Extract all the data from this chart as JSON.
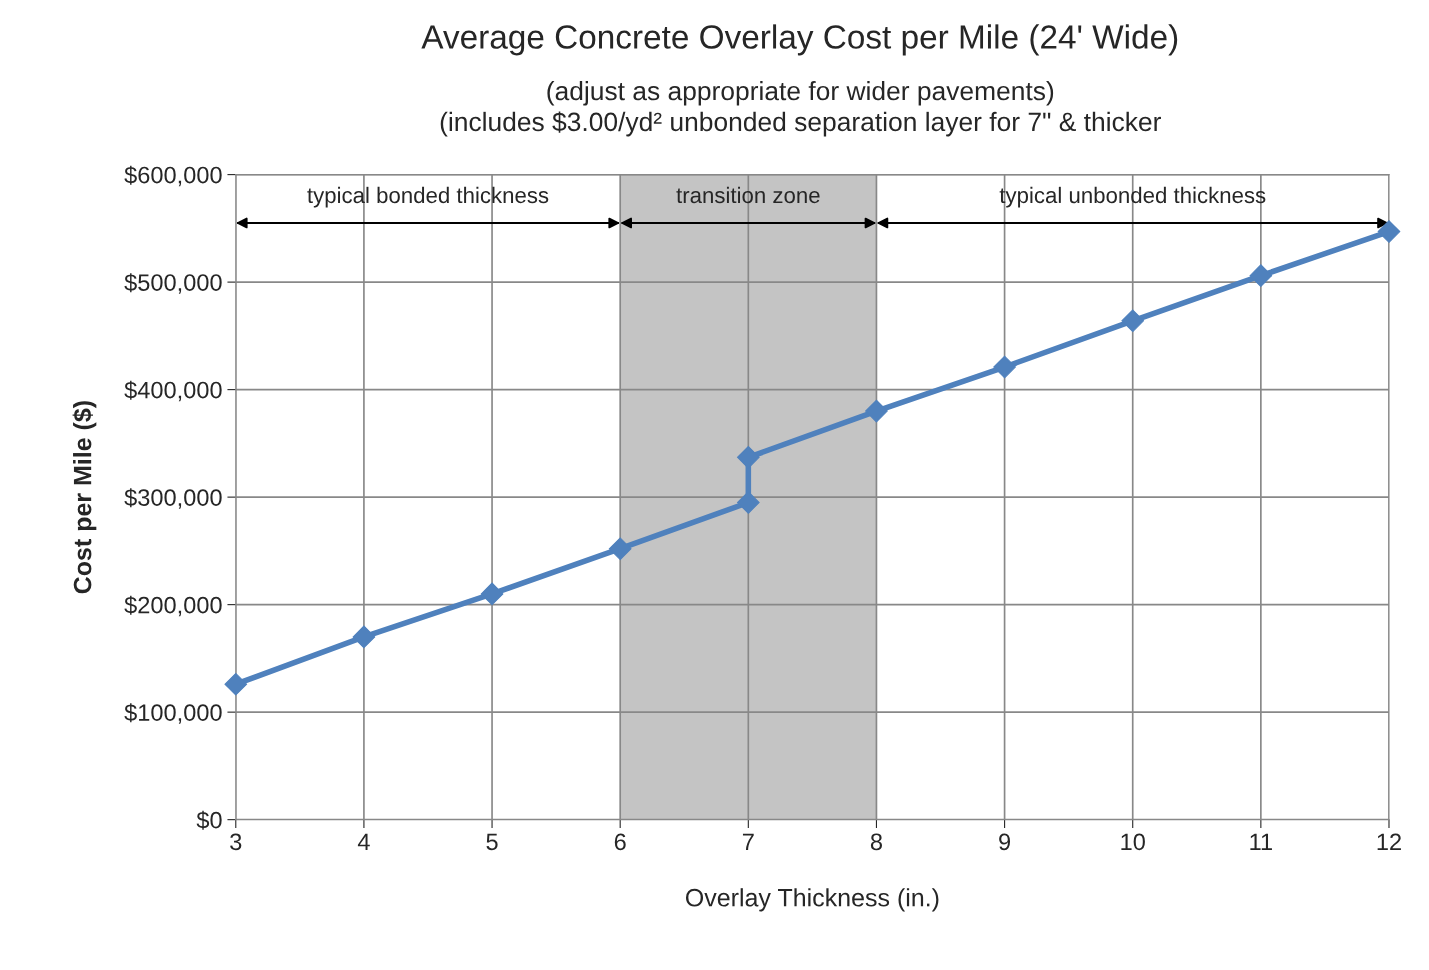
{
  "chart_data": {
    "type": "line",
    "title": "Average Concrete Overlay Cost per Mile (24' Wide)",
    "subtitle": "(adjust as appropriate for wider pavements)\n(includes $3.00/yd² unbonded separation layer for 7\" & thicker",
    "xlabel": "Overlay Thickness (in.)",
    "ylabel": "Cost per Mile ($)",
    "x": [
      3,
      4,
      5,
      6,
      7,
      7,
      8,
      9,
      10,
      11,
      12
    ],
    "series": [
      {
        "color": "#4f81bd",
        "values": [
          126000,
          170000,
          210000,
          252000,
          295000,
          337000,
          380000,
          421000,
          464000,
          506000,
          547000
        ]
      }
    ],
    "xlim": [
      3,
      12
    ],
    "xticks": [
      3,
      4,
      5,
      6,
      7,
      8,
      9,
      10,
      11,
      12
    ],
    "ylim": [
      0,
      600000
    ],
    "yticks": [
      {
        "value": 0,
        "label": "$0"
      },
      {
        "value": 100000,
        "label": "$100,000"
      },
      {
        "value": 200000,
        "label": "$200,000"
      },
      {
        "value": 300000,
        "label": "$300,000"
      },
      {
        "value": 400000,
        "label": "$400,000"
      },
      {
        "value": 500000,
        "label": "$500,000"
      },
      {
        "value": 600000,
        "label": "$600,000"
      }
    ],
    "bands": [
      {
        "axis": "x",
        "from": 6,
        "to": 8,
        "label": "transition zone",
        "color": "#c4c4c4"
      }
    ],
    "annotations": [
      "typical bonded thickness",
      "typical unbonded thickness"
    ],
    "grid": true,
    "marker": "diamond",
    "line_style": "solid"
  }
}
